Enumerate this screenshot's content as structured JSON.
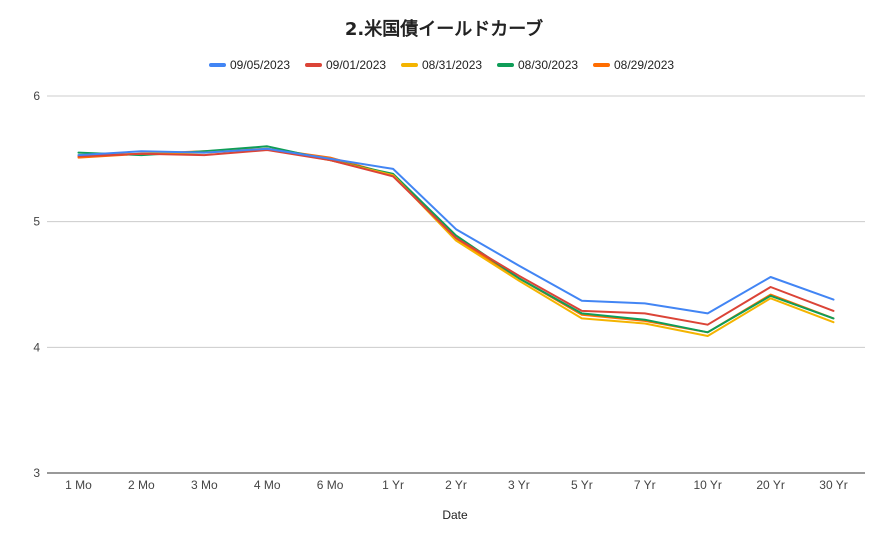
{
  "chart_data": {
    "type": "line",
    "title": "2.米国債イールドカーブ",
    "xlabel": "Date",
    "ylabel": "",
    "ylim": [
      3,
      6
    ],
    "yticks": [
      3,
      4,
      5,
      6
    ],
    "grid": true,
    "legend_position": "top",
    "categories": [
      "1 Mo",
      "2 Mo",
      "3 Mo",
      "4 Mo",
      "6 Mo",
      "1 Yr",
      "2 Yr",
      "3 Yr",
      "5 Yr",
      "7 Yr",
      "10 Yr",
      "20 Yr",
      "30 Yr"
    ],
    "series": [
      {
        "name": "09/05/2023",
        "color": "#4285f4",
        "values": [
          5.53,
          5.56,
          5.55,
          5.58,
          5.5,
          5.42,
          4.94,
          4.65,
          4.37,
          4.35,
          4.27,
          4.56,
          4.38
        ]
      },
      {
        "name": "09/01/2023",
        "color": "#db4437",
        "values": [
          5.52,
          5.54,
          5.53,
          5.57,
          5.49,
          5.36,
          4.87,
          4.57,
          4.29,
          4.27,
          4.18,
          4.48,
          4.29
        ]
      },
      {
        "name": "08/31/2023",
        "color": "#f4b400",
        "values": [
          5.53,
          5.54,
          5.55,
          5.58,
          5.49,
          5.37,
          4.85,
          4.53,
          4.23,
          4.19,
          4.09,
          4.39,
          4.2
        ]
      },
      {
        "name": "08/30/2023",
        "color": "#0f9d58",
        "values": [
          5.55,
          5.53,
          5.56,
          5.6,
          5.49,
          5.38,
          4.89,
          4.55,
          4.27,
          4.22,
          4.12,
          4.41,
          4.23
        ]
      },
      {
        "name": "08/29/2023",
        "color": "#ff6d01",
        "values": [
          5.51,
          5.54,
          5.56,
          5.58,
          5.51,
          5.37,
          4.86,
          4.55,
          4.26,
          4.21,
          4.12,
          4.42,
          4.23
        ]
      }
    ]
  }
}
